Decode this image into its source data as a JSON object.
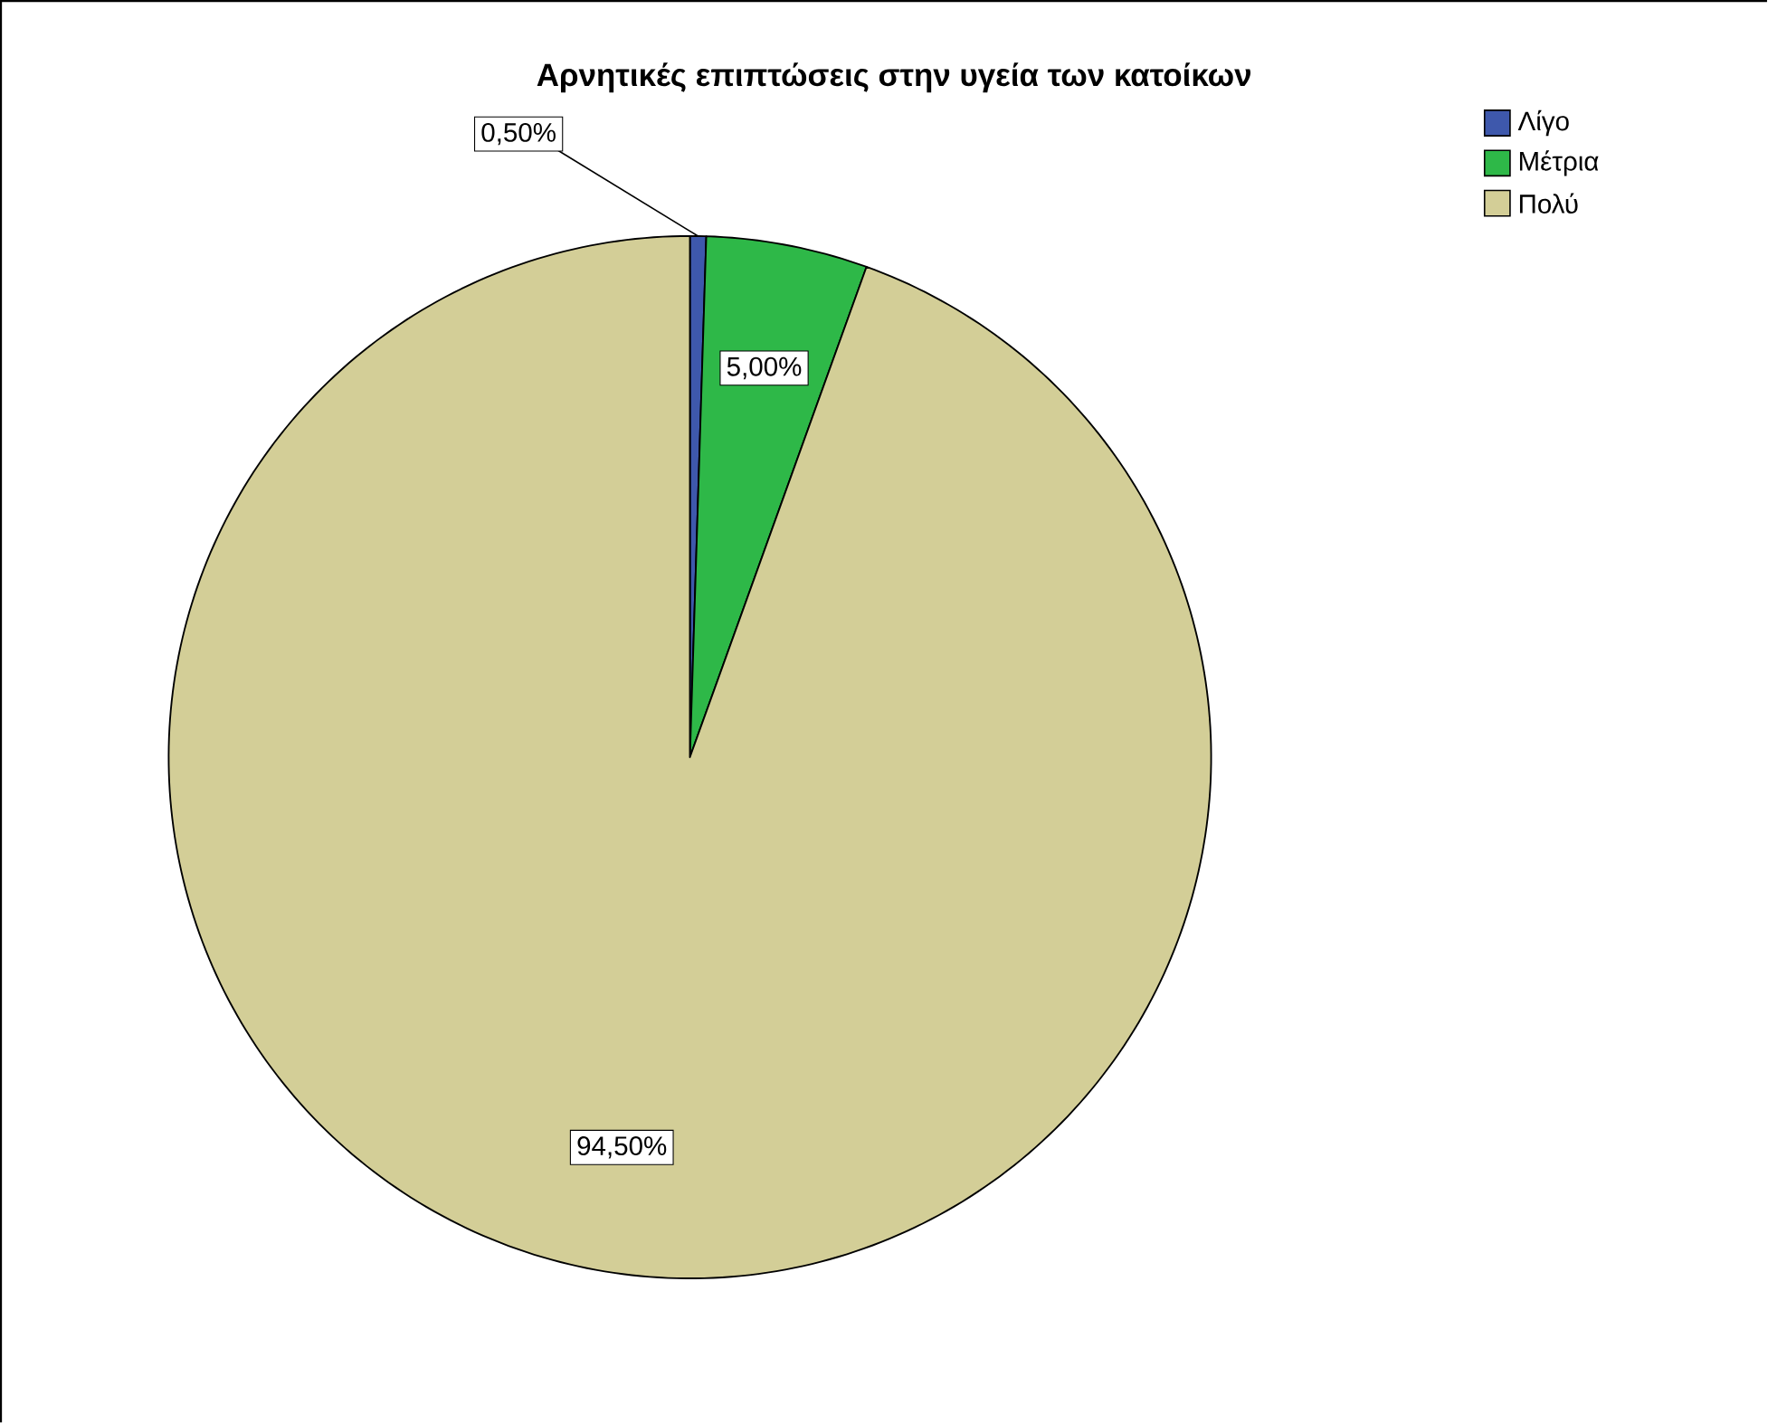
{
  "chart_data": {
    "type": "pie",
    "title": "Αρνητικές επιπτώσεις στην υγεία των κατοίκων",
    "categories": [
      "Λίγο",
      "Μέτρια",
      "Πολύ"
    ],
    "values": [
      0.5,
      5.0,
      94.5
    ],
    "colors": [
      "#3e58ac",
      "#2eb848",
      "#d3ce97"
    ],
    "value_labels": [
      "0,50%",
      "5,00%",
      "94,50%"
    ],
    "legend": "top right"
  }
}
